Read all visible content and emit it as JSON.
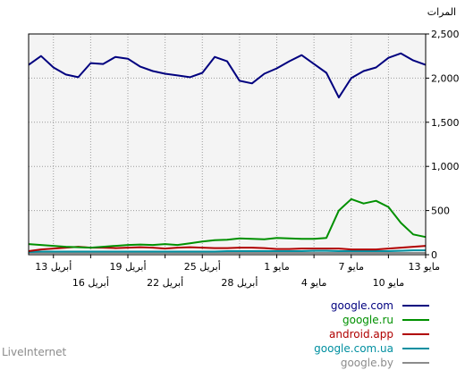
{
  "brand": "LiveInternet",
  "chart_data": {
    "type": "line",
    "ylabel": "المرات",
    "ylim": [
      0,
      2500
    ],
    "yticks": [
      "2,500",
      "2,000",
      "1,500",
      "1,000",
      "500",
      "0"
    ],
    "grid": true,
    "legend_position": "bottom-right",
    "x_direction": "right-to-left",
    "x_tick_labels_top": [
      "13 مايو",
      "7 مايو",
      "1 مايو",
      "25 أبريل",
      "19 أبريل",
      "13 أبريل"
    ],
    "x_tick_labels_bottom": [
      "10 مايو",
      "4 مايو",
      "28 أبريل",
      "22 أبريل",
      "16 أبريل"
    ],
    "series": [
      {
        "name": "google.com",
        "color": "#00007f",
        "values": [
          2150,
          2200,
          2280,
          2230,
          2120,
          2080,
          2000,
          1780,
          2060,
          2160,
          2260,
          2190,
          2110,
          2050,
          1940,
          1970,
          2190,
          2240,
          2060,
          2010,
          2030,
          2050,
          2080,
          2130,
          2220,
          2240,
          2160,
          2170,
          2010,
          2040,
          2120,
          2250,
          2150
        ]
      },
      {
        "name": "google.ru",
        "color": "#009000",
        "values": [
          200,
          230,
          360,
          540,
          610,
          580,
          630,
          500,
          190,
          180,
          180,
          185,
          190,
          175,
          180,
          185,
          170,
          165,
          150,
          130,
          110,
          120,
          110,
          115,
          110,
          100,
          90,
          80,
          85,
          90,
          100,
          110,
          120
        ]
      },
      {
        "name": "android.app",
        "color": "#b00000",
        "values": [
          100,
          90,
          80,
          70,
          60,
          60,
          60,
          70,
          70,
          70,
          70,
          65,
          65,
          75,
          80,
          80,
          75,
          75,
          80,
          85,
          80,
          70,
          80,
          85,
          80,
          75,
          80,
          80,
          90,
          80,
          70,
          60,
          40
        ]
      },
      {
        "name": "google.com.ua",
        "color": "#008fa0",
        "values": [
          50,
          50,
          45,
          40,
          40,
          40,
          40,
          40,
          45,
          45,
          40,
          40,
          40,
          40,
          40,
          40,
          40,
          35,
          35,
          35,
          35,
          35,
          35,
          35,
          35,
          35,
          35,
          35,
          35,
          35,
          35,
          35,
          30
        ]
      },
      {
        "name": "google.by",
        "color": "#8c8c8c",
        "values": [
          20,
          20,
          20,
          20,
          20,
          20,
          20,
          20,
          20,
          20,
          20,
          20,
          20,
          20,
          20,
          20,
          20,
          20,
          20,
          20,
          20,
          20,
          20,
          20,
          20,
          20,
          20,
          20,
          20,
          20,
          20,
          20,
          20
        ]
      }
    ]
  }
}
